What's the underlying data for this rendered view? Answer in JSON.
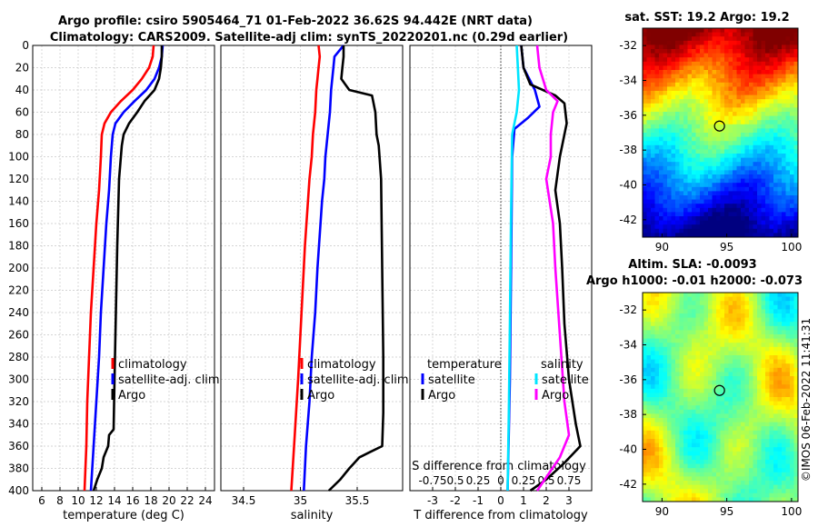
{
  "figure": {
    "title_line1": "Argo profile: csiro 5905464_71 01-Feb-2022 36.62S 94.442E (NRT data)",
    "title_line2": "Climatology: CARS2009. Satellite-adj clim: synTS_20220201.nc (0.29d earlier)",
    "copyright": "©IMOS 06-Feb-2022 11:41:31"
  },
  "colors": {
    "climatology": "#ff0000",
    "satellite_adj": "#0000ff",
    "argo": "#000000",
    "sat_T": "#00e5ff",
    "sat_S": "#ff00ff"
  },
  "chart_data": [
    {
      "type": "line",
      "id": "temperature",
      "xlabel": "temperature (deg C)",
      "xlim": [
        5,
        25
      ],
      "xticks": [
        "6",
        "8",
        "10",
        "12",
        "14",
        "16",
        "18",
        "20",
        "22",
        "24"
      ],
      "ylim": [
        0,
        400
      ],
      "yticks": [
        "0",
        "20",
        "40",
        "60",
        "80",
        "100",
        "120",
        "140",
        "160",
        "180",
        "200",
        "220",
        "240",
        "260",
        "280",
        "300",
        "320",
        "340",
        "360",
        "380",
        "400"
      ],
      "y_reversed": true,
      "grid": true,
      "legend_position": "bottom-right",
      "series": [
        {
          "name": "climatology",
          "color": "#ff0000",
          "points": [
            [
              18.3,
              0
            ],
            [
              18.2,
              10
            ],
            [
              17.8,
              20
            ],
            [
              17.0,
              30
            ],
            [
              16.0,
              40
            ],
            [
              14.7,
              50
            ],
            [
              13.6,
              60
            ],
            [
              12.9,
              70
            ],
            [
              12.6,
              80
            ],
            [
              12.5,
              100
            ],
            [
              12.3,
              130
            ],
            [
              12.0,
              160
            ],
            [
              11.7,
              200
            ],
            [
              11.4,
              240
            ],
            [
              11.2,
              280
            ],
            [
              11.0,
              320
            ],
            [
              10.9,
              360
            ],
            [
              10.7,
              400
            ]
          ]
        },
        {
          "name": "satellite-adj. clim",
          "color": "#0000ff",
          "points": [
            [
              19.3,
              0
            ],
            [
              19.2,
              10
            ],
            [
              18.9,
              20
            ],
            [
              18.4,
              30
            ],
            [
              17.5,
              40
            ],
            [
              16.2,
              50
            ],
            [
              15.0,
              60
            ],
            [
              14.1,
              70
            ],
            [
              13.8,
              80
            ],
            [
              13.6,
              100
            ],
            [
              13.4,
              130
            ],
            [
              13.1,
              160
            ],
            [
              12.8,
              200
            ],
            [
              12.5,
              240
            ],
            [
              12.3,
              280
            ],
            [
              12.0,
              320
            ],
            [
              11.7,
              360
            ],
            [
              11.4,
              400
            ]
          ]
        },
        {
          "name": "Argo",
          "color": "#000000",
          "points": [
            [
              19.2,
              0
            ],
            [
              19.2,
              10
            ],
            [
              19.1,
              20
            ],
            [
              18.9,
              30
            ],
            [
              18.4,
              40
            ],
            [
              17.3,
              50
            ],
            [
              16.5,
              60
            ],
            [
              15.6,
              70
            ],
            [
              15.0,
              80
            ],
            [
              14.8,
              90
            ],
            [
              14.7,
              100
            ],
            [
              14.5,
              120
            ],
            [
              14.4,
              150
            ],
            [
              14.3,
              180
            ],
            [
              14.2,
              220
            ],
            [
              14.1,
              260
            ],
            [
              14.0,
              300
            ],
            [
              13.9,
              345
            ],
            [
              13.4,
              350
            ],
            [
              13.3,
              360
            ],
            [
              12.8,
              370
            ],
            [
              12.6,
              380
            ],
            [
              12.1,
              390
            ],
            [
              11.7,
              400
            ]
          ]
        }
      ]
    },
    {
      "type": "line",
      "id": "salinity",
      "xlabel": "salinity",
      "xlim": [
        34.3,
        35.9
      ],
      "xticks": [
        "34.5",
        "35",
        "35.5"
      ],
      "ylim": [
        0,
        400
      ],
      "y_reversed": true,
      "grid": true,
      "legend_position": "bottom-right",
      "series": [
        {
          "name": "climatology",
          "color": "#ff0000",
          "points": [
            [
              35.16,
              0
            ],
            [
              35.17,
              10
            ],
            [
              35.16,
              20
            ],
            [
              35.15,
              30
            ],
            [
              35.14,
              40
            ],
            [
              35.13,
              60
            ],
            [
              35.11,
              80
            ],
            [
              35.1,
              100
            ],
            [
              35.08,
              120
            ],
            [
              35.06,
              150
            ],
            [
              35.04,
              180
            ],
            [
              35.02,
              220
            ],
            [
              35.0,
              260
            ],
            [
              34.98,
              300
            ],
            [
              34.95,
              350
            ],
            [
              34.92,
              400
            ]
          ]
        },
        {
          "name": "satellite-adj. clim",
          "color": "#0000ff",
          "points": [
            [
              35.38,
              0
            ],
            [
              35.3,
              10
            ],
            [
              35.29,
              20
            ],
            [
              35.27,
              40
            ],
            [
              35.26,
              60
            ],
            [
              35.24,
              80
            ],
            [
              35.22,
              100
            ],
            [
              35.21,
              120
            ],
            [
              35.19,
              140
            ],
            [
              35.17,
              170
            ],
            [
              35.15,
              200
            ],
            [
              35.13,
              240
            ],
            [
              35.1,
              280
            ],
            [
              35.08,
              320
            ],
            [
              35.05,
              360
            ],
            [
              35.03,
              400
            ]
          ]
        },
        {
          "name": "Argo",
          "color": "#000000",
          "points": [
            [
              35.38,
              0
            ],
            [
              35.38,
              10
            ],
            [
              35.37,
              20
            ],
            [
              35.36,
              30
            ],
            [
              35.43,
              40
            ],
            [
              35.63,
              45
            ],
            [
              35.66,
              60
            ],
            [
              35.67,
              80
            ],
            [
              35.69,
              90
            ],
            [
              35.71,
              120
            ],
            [
              35.72,
              200
            ],
            [
              35.73,
              280
            ],
            [
              35.73,
              330
            ],
            [
              35.72,
              360
            ],
            [
              35.62,
              365
            ],
            [
              35.52,
              370
            ],
            [
              35.43,
              380
            ],
            [
              35.35,
              390
            ],
            [
              35.25,
              400
            ]
          ]
        }
      ]
    },
    {
      "type": "line",
      "id": "difference",
      "xlabel": "T difference from climatology",
      "xlabel_top": "S difference from climatology",
      "xlim": [
        -4,
        4
      ],
      "xticks": [
        "-3",
        "-2",
        "-1",
        "0",
        "1",
        "2",
        "3"
      ],
      "xticks_top": [
        "-0.75",
        "0.5",
        "0.25",
        "0",
        "0.25",
        "0.5",
        "0.75"
      ],
      "ylim": [
        0,
        400
      ],
      "y_reversed": true,
      "grid": true,
      "legend_left_title": "temperature",
      "legend_right_title": "salinity",
      "series": [
        {
          "name": "satellite",
          "group": "temperature",
          "color": "#0000ff",
          "points": [
            [
              0.9,
              0
            ],
            [
              1.0,
              20
            ],
            [
              1.5,
              40
            ],
            [
              1.7,
              55
            ],
            [
              1.2,
              65
            ],
            [
              0.6,
              75
            ],
            [
              0.5,
              100
            ],
            [
              0.45,
              200
            ],
            [
              0.4,
              300
            ],
            [
              0.3,
              400
            ]
          ]
        },
        {
          "name": "satellite",
          "group": "salinity",
          "color": "#00e5ff",
          "points": [
            [
              0.7,
              0
            ],
            [
              0.75,
              20
            ],
            [
              0.8,
              40
            ],
            [
              0.7,
              60
            ],
            [
              0.5,
              80
            ],
            [
              0.45,
              150
            ],
            [
              0.4,
              250
            ],
            [
              0.35,
              330
            ],
            [
              0.3,
              400
            ]
          ]
        },
        {
          "name": "Argo",
          "group": "temperature",
          "color": "#000000",
          "points": [
            [
              0.9,
              0
            ],
            [
              1.0,
              20
            ],
            [
              1.3,
              35
            ],
            [
              2.4,
              45
            ],
            [
              2.8,
              52
            ],
            [
              2.9,
              70
            ],
            [
              2.6,
              100
            ],
            [
              2.4,
              130
            ],
            [
              2.6,
              160
            ],
            [
              2.7,
              200
            ],
            [
              2.8,
              250
            ],
            [
              3.0,
              300
            ],
            [
              3.3,
              340
            ],
            [
              3.5,
              360
            ],
            [
              2.8,
              375
            ],
            [
              2.0,
              390
            ],
            [
              1.3,
              400
            ]
          ]
        },
        {
          "name": "Argo",
          "group": "salinity",
          "color": "#ff00ff",
          "points": [
            [
              1.6,
              0
            ],
            [
              1.7,
              20
            ],
            [
              2.0,
              40
            ],
            [
              2.5,
              50
            ],
            [
              2.3,
              60
            ],
            [
              2.2,
              80
            ],
            [
              2.2,
              100
            ],
            [
              2.0,
              120
            ],
            [
              2.3,
              160
            ],
            [
              2.4,
              200
            ],
            [
              2.6,
              260
            ],
            [
              2.8,
              320
            ],
            [
              3.0,
              350
            ],
            [
              2.6,
              370
            ],
            [
              2.1,
              385
            ],
            [
              1.6,
              400
            ]
          ]
        }
      ]
    },
    {
      "type": "heatmap",
      "id": "sst_map",
      "title": "sat. SST: 19.2 Argo: 19.2",
      "xlim": [
        88.5,
        100.5
      ],
      "ylim": [
        -43,
        -31
      ],
      "xticks": [
        "90",
        "95",
        "100"
      ],
      "yticks": [
        "-32",
        "-34",
        "-36",
        "-38",
        "-40",
        "-42"
      ],
      "marker": {
        "lon": 94.44,
        "lat": -36.62
      }
    },
    {
      "type": "heatmap",
      "id": "sla_map",
      "title_line1": "Altim. SLA: -0.0093",
      "title_line2": "Argo h1000: -0.01 h2000: -0.073",
      "xlim": [
        88.5,
        100.5
      ],
      "ylim": [
        -43,
        -31
      ],
      "xticks": [
        "90",
        "95",
        "100"
      ],
      "yticks": [
        "-32",
        "-34",
        "-36",
        "-38",
        "-40",
        "-42"
      ],
      "marker": {
        "lon": 94.44,
        "lat": -36.62
      }
    }
  ]
}
